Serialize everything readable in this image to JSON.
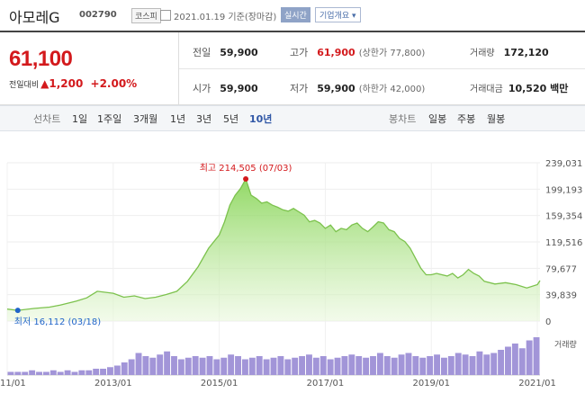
{
  "header": {
    "stock_name": "아모레G",
    "stock_code": "002790",
    "market": "코스피",
    "date": "2021.01.19  기준(장마감)",
    "realtime_label": "실시간",
    "company_label": "기업개요 ▾"
  },
  "summary": {
    "price": "61,100",
    "change_label": "전일대비",
    "change_arrow": "▲",
    "change_amount": "1,200",
    "change_percent": "+2.00%",
    "prev_close_label": "전일",
    "prev_close": "59,900",
    "high_label": "고가",
    "high": "61,900",
    "high_limit": "(상한가 77,800)",
    "volume_label": "거래량",
    "volume": "172,120",
    "open_label": "시가",
    "open": "59,900",
    "low_label": "저가",
    "low": "59,900",
    "low_limit": "(하한가 42,000)",
    "value_label": "거래대금",
    "value": "10,520 백만"
  },
  "tabs": {
    "line_label": "선차트",
    "line_periods": [
      "1일",
      "1주일",
      "3개월",
      "1년",
      "3년",
      "5년",
      "10년"
    ],
    "active_period": "10년",
    "candle_label": "봉차트",
    "candle_periods": [
      "일봉",
      "주봉",
      "월봉"
    ]
  },
  "colors": {
    "accent_red": "#d3191c",
    "low_blue": "#1f64c8",
    "area_fill": "#a8e07a",
    "line": "#7cc24d",
    "volume": "#a295d8"
  },
  "chart_data": {
    "type": "area",
    "y_ticks": [
      "239,031",
      "199,193",
      "159,354",
      "119,516",
      "79,677",
      "39,839",
      "0"
    ],
    "ylim": [
      0,
      239031
    ],
    "x_ticks": [
      "2011/01",
      "2013/01",
      "2015/01",
      "2017/01",
      "2019/01",
      "2021/01"
    ],
    "xlim": [
      2011.0,
      2021.05
    ],
    "high_annotation": "최고 214,505 (07/03)",
    "low_annotation": "최저 16,112 (03/18)",
    "high_point": {
      "x": 2015.5,
      "y": 214505
    },
    "low_point": {
      "x": 2011.2,
      "y": 16112
    },
    "volume_legend": "거래량",
    "series": [
      {
        "x": [
          2011.0,
          2011.2,
          2011.5,
          2011.8,
          2012.0,
          2012.3,
          2012.5,
          2012.7,
          2013.0,
          2013.2,
          2013.4,
          2013.6,
          2013.8,
          2014.0,
          2014.2,
          2014.4,
          2014.6,
          2014.8,
          2015.0,
          2015.1,
          2015.2,
          2015.3,
          2015.4,
          2015.5,
          2015.6,
          2015.7,
          2015.8,
          2015.9,
          2016.0,
          2016.1,
          2016.2,
          2016.3,
          2016.4,
          2016.5,
          2016.6,
          2016.7,
          2016.8,
          2016.9,
          2017.0,
          2017.1,
          2017.2,
          2017.3,
          2017.4,
          2017.5,
          2017.6,
          2017.7,
          2017.8,
          2017.9,
          2018.0,
          2018.1,
          2018.2,
          2018.3,
          2018.4,
          2018.5,
          2018.6,
          2018.7,
          2018.8,
          2018.9,
          2019.0,
          2019.1,
          2019.2,
          2019.3,
          2019.4,
          2019.5,
          2019.6,
          2019.7,
          2019.8,
          2019.9,
          2020.0,
          2020.2,
          2020.4,
          2020.6,
          2020.8,
          2021.0,
          2021.05
        ],
        "y": [
          18000,
          16112,
          19000,
          21000,
          24000,
          30000,
          35000,
          45000,
          42000,
          36000,
          38000,
          34000,
          36000,
          40000,
          45000,
          60000,
          82000,
          110000,
          130000,
          150000,
          175000,
          190000,
          200000,
          214505,
          190000,
          185000,
          178000,
          180000,
          175000,
          172000,
          168000,
          166000,
          170000,
          165000,
          160000,
          150000,
          152000,
          148000,
          140000,
          145000,
          135000,
          140000,
          138000,
          145000,
          148000,
          140000,
          135000,
          142000,
          150000,
          148000,
          138000,
          135000,
          125000,
          120000,
          110000,
          95000,
          80000,
          70000,
          70000,
          72000,
          70000,
          68000,
          72000,
          65000,
          70000,
          78000,
          72000,
          68000,
          60000,
          56000,
          58000,
          55000,
          50000,
          55000,
          61100
        ]
      }
    ],
    "volume": [
      2,
      2,
      2,
      3,
      2,
      2,
      3,
      2,
      3,
      2,
      3,
      3,
      4,
      4,
      5,
      6,
      8,
      10,
      14,
      12,
      11,
      13,
      15,
      12,
      10,
      11,
      12,
      11,
      12,
      10,
      11,
      13,
      12,
      10,
      11,
      12,
      10,
      11,
      12,
      10,
      11,
      12,
      13,
      11,
      12,
      10,
      11,
      12,
      13,
      12,
      11,
      12,
      14,
      12,
      11,
      13,
      14,
      12,
      11,
      12,
      13,
      11,
      12,
      14,
      13,
      12,
      15,
      13,
      14,
      16,
      18,
      20,
      17,
      22,
      24
    ]
  }
}
